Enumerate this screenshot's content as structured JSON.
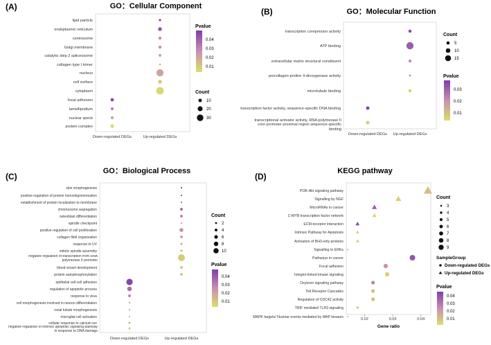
{
  "colors": {
    "high": "#7e3fa6",
    "mid": "#c98fb0",
    "low": "#d8e06a",
    "axis": "#888888",
    "text": "#333333"
  },
  "chart_data": [
    {
      "type": "scatter",
      "letter": "(A)",
      "title": "GO：Cellular Component",
      "columns": [
        "Down-regulated DEGs",
        "Up-regulated DEGs"
      ],
      "terms": [
        "lipid particle",
        "endoplasmic reticulum",
        "centrosome",
        "Golgi membrane",
        "catalytic step 2 spliceosome",
        "collagen type I trimer",
        "nucleus",
        "cell surface",
        "cytoplasm",
        "focal adhesion",
        "lamellipodium",
        "nuclear speck",
        "protein complex"
      ],
      "points": [
        {
          "term": "lipid particle",
          "group": "Up-regulated DEGs",
          "count": 5,
          "pvalue": 0.042
        },
        {
          "term": "endoplasmic reticulum",
          "group": "Up-regulated DEGs",
          "count": 13,
          "pvalue": 0.04
        },
        {
          "term": "centrosome",
          "group": "Up-regulated DEGs",
          "count": 8,
          "pvalue": 0.028
        },
        {
          "term": "Golgi membrane",
          "group": "Up-regulated DEGs",
          "count": 9,
          "pvalue": 0.025
        },
        {
          "term": "catalytic step 2 spliceosome",
          "group": "Up-regulated DEGs",
          "count": 7,
          "pvalue": 0.022
        },
        {
          "term": "collagen type I trimer",
          "group": "Up-regulated DEGs",
          "count": 3,
          "pvalue": 0.015
        },
        {
          "term": "nucleus",
          "group": "Up-regulated DEGs",
          "count": 30,
          "pvalue": 0.02
        },
        {
          "term": "cell surface",
          "group": "Up-regulated DEGs",
          "count": 12,
          "pvalue": 0.012
        },
        {
          "term": "cytoplasm",
          "group": "Up-regulated DEGs",
          "count": 32,
          "pvalue": 0.006
        },
        {
          "term": "focal adhesion",
          "group": "Down-regulated DEGs",
          "count": 10,
          "pvalue": 0.045
        },
        {
          "term": "lamellipodium",
          "group": "Down-regulated DEGs",
          "count": 8,
          "pvalue": 0.03
        },
        {
          "term": "nuclear speck",
          "group": "Down-regulated DEGs",
          "count": 8,
          "pvalue": 0.02
        },
        {
          "term": "protein complex",
          "group": "Down-regulated DEGs",
          "count": 12,
          "pvalue": 0.005
        }
      ],
      "color_legend": {
        "title": "Pvalue",
        "ticks": [
          "0.04",
          "0.03",
          "0.02",
          "0.01"
        ],
        "range": [
          0.004,
          0.046
        ]
      },
      "size_legend": {
        "title": "Count",
        "ticks": [
          10,
          20,
          30
        ]
      }
    },
    {
      "type": "scatter",
      "letter": "(B)",
      "title": "GO：Molecular Function",
      "columns": [
        "Down-regulated DEGs",
        "Up-regulated DEGs"
      ],
      "terms": [
        "transcription corepressor activity",
        "ATP binding",
        "extracellular matrix structural constituent",
        "procollagen-proline 4-dioxygenase activity",
        "microtubule binding",
        "transcription factor activity, sequence-specific DNA binding",
        "transcriptional activator activity, RNA polymerase II core promoter proximal region sequence-specific binding"
      ],
      "points": [
        {
          "term": "transcription corepressor activity",
          "group": "Up-regulated DEGs",
          "count": 5,
          "pvalue": 0.033
        },
        {
          "term": "ATP binding",
          "group": "Up-regulated DEGs",
          "count": 16,
          "pvalue": 0.03
        },
        {
          "term": "extracellular matrix structural constituent",
          "group": "Up-regulated DEGs",
          "count": 4,
          "pvalue": 0.022
        },
        {
          "term": "procollagen-proline 4-dioxygenase activity",
          "group": "Up-regulated DEGs",
          "count": 2,
          "pvalue": 0.018
        },
        {
          "term": "microtubule binding",
          "group": "Up-regulated DEGs",
          "count": 5,
          "pvalue": 0.006
        },
        {
          "term": "transcription factor activity, sequence-specific DNA binding",
          "group": "Down-regulated DEGs",
          "count": 6,
          "pvalue": 0.034
        },
        {
          "term": "transcriptional activator activity, RNA polymerase II core promoter proximal region sequence-specific binding",
          "group": "Down-regulated DEGs",
          "count": 6,
          "pvalue": 0.008
        }
      ],
      "size_legend": {
        "title": "Count",
        "ticks": [
          5,
          10,
          15
        ]
      },
      "color_legend": {
        "title": "Pvalue",
        "ticks": [
          "0.03",
          "0.02",
          "0.01"
        ],
        "range": [
          0.004,
          0.036
        ]
      }
    },
    {
      "type": "scatter",
      "letter": "(C)",
      "title": "GO：Biological Process",
      "columns": [
        "Down-regulated DEGs",
        "Up-regulated DEGs"
      ],
      "terms": [
        "skin morphogenesis",
        "positive regulation of protein homooligomerization",
        "establishment of protein localization to membrane",
        "chromosome segregation",
        "osteoblast differentiation",
        "spindle checkpoint",
        "positive regulation of cell proliferation",
        "collagen fibril organization",
        "response to UV",
        "mitotic spindle assembly",
        "negative regulation of transcription from RNA polymerase II promoter",
        "blood vessel development",
        "protein autophosphorylation",
        "epithelial cell-cell adhesion",
        "regulation of apoptotic process",
        "response to virus",
        "cell morphogenesis involved in neuron differentiation",
        "renal tubule morphogenesis",
        "microglial cell activation",
        "cellular response to calcium ion",
        "negative regulation of intrinsic apoptotic signaling pathway in response to DNA damage"
      ],
      "points": [
        {
          "term": "skin morphogenesis",
          "group": "Up-regulated DEGs",
          "count": 2,
          "pvalue": 0.045
        },
        {
          "term": "positive regulation of protein homooligomerization",
          "group": "Up-regulated DEGs",
          "count": 2,
          "pvalue": 0.04
        },
        {
          "term": "establishment of protein localization to membrane",
          "group": "Up-regulated DEGs",
          "count": 2,
          "pvalue": 0.035
        },
        {
          "term": "chromosome segregation",
          "group": "Up-regulated DEGs",
          "count": 4,
          "pvalue": 0.036
        },
        {
          "term": "osteoblast differentiation",
          "group": "Up-regulated DEGs",
          "count": 4,
          "pvalue": 0.03
        },
        {
          "term": "spindle checkpoint",
          "group": "Up-regulated DEGs",
          "count": 2,
          "pvalue": 0.02
        },
        {
          "term": "positive regulation of cell proliferation",
          "group": "Up-regulated DEGs",
          "count": 6,
          "pvalue": 0.026
        },
        {
          "term": "collagen fibril organization",
          "group": "Up-regulated DEGs",
          "count": 4,
          "pvalue": 0.022
        },
        {
          "term": "response to UV",
          "group": "Up-regulated DEGs",
          "count": 3,
          "pvalue": 0.02
        },
        {
          "term": "mitotic spindle assembly",
          "group": "Up-regulated DEGs",
          "count": 3,
          "pvalue": 0.017
        },
        {
          "term": "negative regulation of transcription from RNA polymerase II promoter",
          "group": "Up-regulated DEGs",
          "count": 11,
          "pvalue": 0.01
        },
        {
          "term": "blood vessel development",
          "group": "Up-regulated DEGs",
          "count": 4,
          "pvalue": 0.012
        },
        {
          "term": "protein autophosphorylation",
          "group": "Up-regulated DEGs",
          "count": 4,
          "pvalue": 0.01
        },
        {
          "term": "epithelial cell-cell adhesion",
          "group": "Down-regulated DEGs",
          "count": 10,
          "pvalue": 0.045
        },
        {
          "term": "regulation of apoptotic process",
          "group": "Down-regulated DEGs",
          "count": 7,
          "pvalue": 0.035
        },
        {
          "term": "response to virus",
          "group": "Down-regulated DEGs",
          "count": 4,
          "pvalue": 0.03
        },
        {
          "term": "cell morphogenesis involved in neuron differentiation",
          "group": "Down-regulated DEGs",
          "count": 2,
          "pvalue": 0.025
        },
        {
          "term": "renal tubule morphogenesis",
          "group": "Down-regulated DEGs",
          "count": 2,
          "pvalue": 0.022
        },
        {
          "term": "microglial cell activation",
          "group": "Down-regulated DEGs",
          "count": 2,
          "pvalue": 0.02
        },
        {
          "term": "cellular response to calcium ion",
          "group": "Down-regulated DEGs",
          "count": 3,
          "pvalue": 0.015
        },
        {
          "term": "negative regulation of intrinsic apoptotic signaling pathway in response to DNA damage",
          "group": "Down-regulated DEGs",
          "count": 3,
          "pvalue": 0.012
        }
      ],
      "size_legend": {
        "title": "Count",
        "ticks": [
          2,
          4,
          6,
          8,
          10
        ]
      },
      "color_legend": {
        "title": "Pvalue",
        "ticks": [
          "0.04",
          "0.03",
          "0.02",
          "0.01"
        ],
        "range": [
          0.005,
          0.047
        ]
      }
    },
    {
      "type": "scatter",
      "letter": "(D)",
      "title": "KEGG pathway",
      "xlabel": "Gene ratio",
      "xticks": [
        0.02,
        0.03,
        0.04
      ],
      "xlim": [
        0.0135,
        0.0435
      ],
      "terms": [
        "PI3K-Akt signaling pathway",
        "Signalling by NGF",
        "MicroRNAs in cancer",
        "C-MYB transcription factor network",
        "ECM-receptor interaction",
        "Intrinsic Pathway for Apoptosis",
        "Activation of BH3-only proteins",
        "Signalling to ERKs",
        "Pathways in cancer",
        "Focal adhesion",
        "Integrin-linked kinase signaling",
        "Oxytocin signaling pathway",
        "Toll Receptor Cascades",
        "Regulation of CDC42 activity",
        "TRIF mediated TLR3 signaling",
        "MAPK targets/ Nuclear events mediated by MAP kinases"
      ],
      "points": [
        {
          "term": "PI3K-Akt signaling pathway",
          "group": "Up-regulated DEGs",
          "ratio": 0.0425,
          "count": 9,
          "pvalue": 0.012
        },
        {
          "term": "Signalling by NGF",
          "group": "Up-regulated DEGs",
          "ratio": 0.032,
          "count": 6,
          "pvalue": 0.008
        },
        {
          "term": "MicroRNAs in cancer",
          "group": "Up-regulated DEGs",
          "ratio": 0.0235,
          "count": 5,
          "pvalue": 0.038
        },
        {
          "term": "C-MYB transcription factor network",
          "group": "Up-regulated DEGs",
          "ratio": 0.0235,
          "count": 4,
          "pvalue": 0.008
        },
        {
          "term": "ECM-receptor interaction",
          "group": "Up-regulated DEGs",
          "ratio": 0.0175,
          "count": 4,
          "pvalue": 0.042
        },
        {
          "term": "Intrinsic Pathway for Apoptosis",
          "group": "Up-regulated DEGs",
          "ratio": 0.0175,
          "count": 3,
          "pvalue": 0.01
        },
        {
          "term": "Activation of BH3-only proteins",
          "group": "Up-regulated DEGs",
          "ratio": 0.0175,
          "count": 3,
          "pvalue": 0.01
        },
        {
          "term": "Signalling to ERKs",
          "group": "Up-regulated DEGs",
          "ratio": 0.014,
          "count": 2,
          "pvalue": 0.008
        },
        {
          "term": "Pathways in cancer",
          "group": "Down-regulated DEGs",
          "ratio": 0.037,
          "count": 8,
          "pvalue": 0.04
        },
        {
          "term": "Focal adhesion",
          "group": "Down-regulated DEGs",
          "ratio": 0.0275,
          "count": 6,
          "pvalue": 0.025
        },
        {
          "term": "Integrin-linked kinase signaling",
          "group": "Down-regulated DEGs",
          "ratio": 0.028,
          "count": 6,
          "pvalue": 0.008
        },
        {
          "term": "Oxytocin signaling pathway",
          "group": "Down-regulated DEGs",
          "ratio": 0.023,
          "count": 5,
          "pvalue": 0.028
        },
        {
          "term": "Toll Receptor Cascades",
          "group": "Down-regulated DEGs",
          "ratio": 0.023,
          "count": 5,
          "pvalue": 0.012
        },
        {
          "term": "Regulation of CDC42 activity",
          "group": "Down-regulated DEGs",
          "ratio": 0.023,
          "count": 5,
          "pvalue": 0.012
        },
        {
          "term": "TRIF mediated TLR3 signaling",
          "group": "Down-regulated DEGs",
          "ratio": 0.0175,
          "count": 3,
          "pvalue": 0.01
        },
        {
          "term": "MAPK targets/ Nuclear events mediated by MAP kinases",
          "group": "Down-regulated DEGs",
          "ratio": 0.014,
          "count": 2,
          "pvalue": 0.008
        }
      ],
      "size_legend": {
        "title": "Count",
        "ticks": [
          3,
          4,
          5,
          6,
          7,
          8,
          9
        ]
      },
      "group_legend": {
        "title": "SampleGroup",
        "items": [
          "Down-regulated DEGs",
          "Up-regulated DEGs"
        ]
      },
      "color_legend": {
        "title": "Pvalue",
        "ticks": [
          "0.04",
          "0.03",
          "0.02",
          "0.01"
        ],
        "range": [
          0.004,
          0.046
        ]
      }
    }
  ]
}
